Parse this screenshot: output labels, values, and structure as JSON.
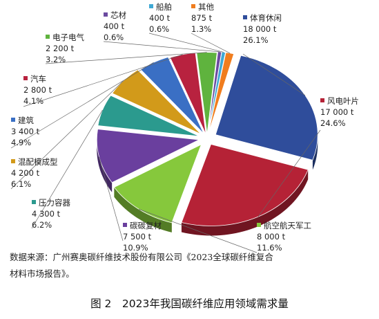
{
  "chart_data": {
    "type": "pie",
    "style": "exploded 3D pie",
    "unit": "t",
    "slices": [
      {
        "name": "体育休闲",
        "value": "18 000 t",
        "amount": 18000,
        "percent": "26.1%",
        "color": "#2f4d9b"
      },
      {
        "name": "风电叶片",
        "value": "17 000 t",
        "amount": 17000,
        "percent": "24.6%",
        "color": "#b52236"
      },
      {
        "name": "航空航天军工",
        "value": "8 000 t",
        "amount": 8000,
        "percent": "11.6%",
        "color": "#86c83c"
      },
      {
        "name": "碳碳复材",
        "value": "7 500 t",
        "amount": 7500,
        "percent": "10.9%",
        "color": "#6a3f9e"
      },
      {
        "name": "压力容器",
        "value": "4 300 t",
        "amount": 4300,
        "percent": "6.2%",
        "color": "#2b9a8e"
      },
      {
        "name": "混配模成型",
        "value": "4 200 t",
        "amount": 4200,
        "percent": "6.1%",
        "color": "#d29a1a"
      },
      {
        "name": "建筑",
        "value": "3 400 t",
        "amount": 3400,
        "percent": "4.9%",
        "color": "#3a6fc4"
      },
      {
        "name": "汽车",
        "value": "2 800 t",
        "amount": 2800,
        "percent": "4.1%",
        "color": "#b8223f"
      },
      {
        "name": "电子电气",
        "value": "2 200 t",
        "amount": 2200,
        "percent": "3.2%",
        "color": "#5fb33e"
      },
      {
        "name": "芯材",
        "value": "400 t",
        "amount": 400,
        "percent": "0.6%",
        "color": "#6b4aa0"
      },
      {
        "name": "船舶",
        "value": "400 t",
        "amount": 400,
        "percent": "0.6%",
        "color": "#3fa9d4"
      },
      {
        "name": "其他",
        "value": "875 t",
        "amount": 875,
        "percent": "1.3%",
        "color": "#f07d1e"
      }
    ]
  },
  "source_note": {
    "line1": "数据来源：广州赛奥碳纤维技术股份有限公司《2023全球碳纤维复合",
    "line2": "材料市场报告》。"
  },
  "caption": "图 2　2023年我国碳纤维应用领域需求量"
}
